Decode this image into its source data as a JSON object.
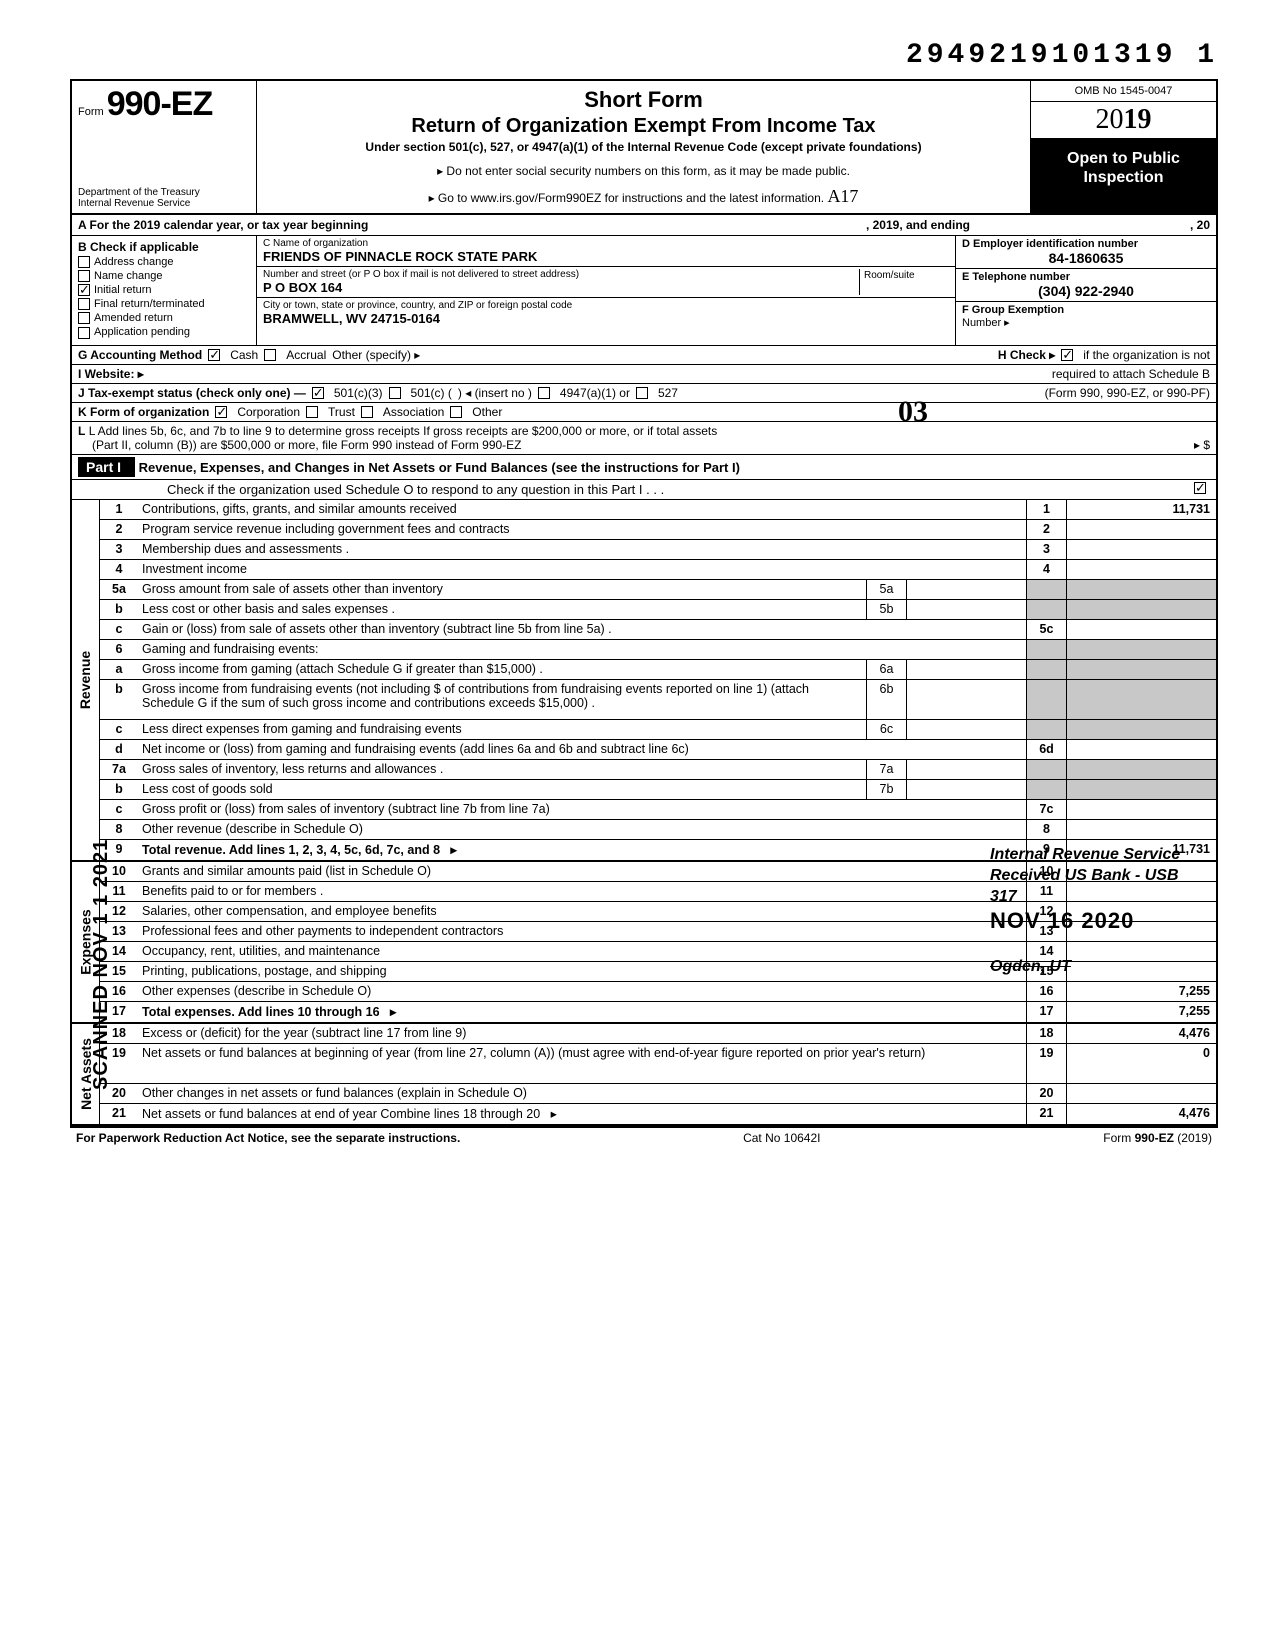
{
  "doc_id": "2949219101319 1",
  "header": {
    "form_prefix": "Form",
    "form_number": "990-EZ",
    "title1": "Short Form",
    "title2": "Return of Organization Exempt From Income Tax",
    "subtitle": "Under section 501(c), 527, or 4947(a)(1) of the Internal Revenue Code (except private foundations)",
    "warn": "▸ Do not enter social security numbers on this form, as it may be made public.",
    "goto": "▸ Go to www.irs.gov/Form990EZ for instructions and the latest information.",
    "dept1": "Department of the Treasury",
    "dept2": "Internal Revenue Service",
    "omb": "OMB No 1545-0047",
    "year_full": "2019",
    "open": "Open to Public Inspection",
    "hand_after_goto": "A17"
  },
  "lineA": {
    "left": "A  For the 2019 calendar year, or tax year beginning",
    "mid": ", 2019, and ending",
    "right": ", 20"
  },
  "B": {
    "label": "B  Check if applicable",
    "items": [
      {
        "label": "Address change",
        "checked": false
      },
      {
        "label": "Name change",
        "checked": false
      },
      {
        "label": "Initial return",
        "checked": true
      },
      {
        "label": "Final return/terminated",
        "checked": false
      },
      {
        "label": "Amended return",
        "checked": false
      },
      {
        "label": "Application pending",
        "checked": false
      }
    ]
  },
  "C": {
    "name_lbl": "C  Name of organization",
    "name": "FRIENDS OF PINNACLE ROCK STATE PARK",
    "addr_lbl": "Number and street (or P O  box if mail is not delivered to street address)",
    "room_lbl": "Room/suite",
    "addr": "P O  BOX 164",
    "city_lbl": "City or town, state or province, country, and ZIP or foreign postal code",
    "city": "BRAMWELL, WV 24715-0164",
    "hand": "03"
  },
  "D": {
    "lbl": "D  Employer identification number",
    "val": "84-1860635"
  },
  "E": {
    "lbl": "E  Telephone number",
    "val": "(304) 922-2940"
  },
  "F": {
    "lbl": "F  Group Exemption",
    "lbl2": "Number ▸"
  },
  "G": {
    "lbl": "G  Accounting Method",
    "cash": "Cash",
    "cash_checked": true,
    "accrual": "Accrual",
    "accrual_checked": false,
    "other": "Other (specify) ▸"
  },
  "H": {
    "txt1": "H  Check ▸",
    "checked": true,
    "txt2": "if the organization is not",
    "txt3": "required to attach Schedule B",
    "txt4": "(Form 990, 990-EZ, or 990-PF)"
  },
  "I": {
    "lbl": "I   Website: ▸"
  },
  "J": {
    "lbl": "J  Tax-exempt status (check only one) —",
    "o1": "501(c)(3)",
    "o1_checked": true,
    "o2": "501(c) (",
    "o2b": ")  ◂ (insert no )",
    "o3": "4947(a)(1) or",
    "o4": "527"
  },
  "K": {
    "lbl": "K  Form of organization",
    "corp": "Corporation",
    "corp_checked": true,
    "trust": "Trust",
    "assoc": "Association",
    "other": "Other"
  },
  "L": {
    "l1": "L  Add lines 5b, 6c, and 7b to line 9 to determine gross receipts  If gross receipts are $200,000 or more, or if total assets",
    "l2": "(Part II, column (B)) are $500,000 or more, file Form 990 instead of Form 990-EZ",
    "arrow": "▸   $"
  },
  "part1": {
    "tab": "Part I",
    "title": "Revenue, Expenses, and Changes in Net Assets or Fund Balances (see the instructions for Part I)",
    "checkO": "Check if the organization used Schedule O to respond to any question in this Part I .  .  .",
    "checkO_checked": true
  },
  "sections": [
    {
      "side": "Revenue",
      "rows": [
        {
          "n": "1",
          "t": "Contributions, gifts, grants, and similar amounts received",
          "r": "1",
          "a": "11,731"
        },
        {
          "n": "2",
          "t": "Program service revenue including government fees and contracts",
          "r": "2",
          "a": ""
        },
        {
          "n": "3",
          "t": "Membership dues and assessments .",
          "r": "3",
          "a": ""
        },
        {
          "n": "4",
          "t": "Investment income",
          "r": "4",
          "a": ""
        },
        {
          "n": "5a",
          "t": "Gross amount from sale of assets other than inventory",
          "b": "5a",
          "grey": true
        },
        {
          "n": "b",
          "t": "Less  cost or other basis and sales expenses .",
          "b": "5b",
          "grey": true
        },
        {
          "n": "c",
          "t": "Gain or (loss) from sale of assets other than inventory (subtract line 5b from line 5a)  .",
          "r": "5c",
          "a": ""
        },
        {
          "n": "6",
          "t": "Gaming and fundraising events:",
          "noboxes": true
        },
        {
          "n": "a",
          "t": "Gross  income  from  gaming  (attach  Schedule  G  if  greater  than $15,000) .",
          "b": "6a",
          "grey": true
        },
        {
          "n": "b",
          "t": "Gross income from fundraising events (not including  $                       of contributions from fundraising events reported on line 1) (attach Schedule G if the sum of such gross income and contributions exceeds $15,000) .",
          "b": "6b",
          "grey": true,
          "tall": true
        },
        {
          "n": "c",
          "t": "Less  direct expenses from gaming and fundraising events",
          "b": "6c",
          "grey": true
        },
        {
          "n": "d",
          "t": "Net income or (loss) from gaming and fundraising events (add lines 6a and 6b and subtract line 6c)",
          "r": "6d",
          "a": ""
        },
        {
          "n": "7a",
          "t": "Gross sales of inventory, less returns and allowances .",
          "b": "7a",
          "grey": true
        },
        {
          "n": "b",
          "t": "Less  cost of goods sold",
          "b": "7b",
          "grey": true
        },
        {
          "n": "c",
          "t": "Gross profit or (loss) from sales of inventory (subtract line 7b from line 7a)",
          "r": "7c",
          "a": ""
        },
        {
          "n": "8",
          "t": "Other revenue (describe in Schedule O)",
          "r": "8",
          "a": ""
        },
        {
          "n": "9",
          "t": "Total revenue. Add lines 1, 2, 3, 4, 5c, 6d, 7c, and 8",
          "r": "9",
          "a": "11,731",
          "tot": true,
          "arrow": true
        }
      ]
    },
    {
      "side": "Expenses",
      "rows": [
        {
          "n": "10",
          "t": "Grants and similar amounts paid (list in Schedule O)",
          "r": "10",
          "a": ""
        },
        {
          "n": "11",
          "t": "Benefits paid to or for members   .",
          "r": "11",
          "a": ""
        },
        {
          "n": "12",
          "t": "Salaries, other compensation, and employee benefits",
          "r": "12",
          "a": ""
        },
        {
          "n": "13",
          "t": "Professional fees and other payments to independent contractors",
          "r": "13",
          "a": ""
        },
        {
          "n": "14",
          "t": "Occupancy, rent, utilities, and maintenance",
          "r": "14",
          "a": ""
        },
        {
          "n": "15",
          "t": "Printing, publications, postage, and shipping",
          "r": "15",
          "a": ""
        },
        {
          "n": "16",
          "t": "Other expenses (describe in Schedule O)",
          "r": "16",
          "a": "7,255"
        },
        {
          "n": "17",
          "t": "Total expenses. Add lines 10 through 16",
          "r": "17",
          "a": "7,255",
          "tot": true,
          "arrow": true
        }
      ]
    },
    {
      "side": "Net Assets",
      "rows": [
        {
          "n": "18",
          "t": "Excess or (deficit) for the year (subtract line 17 from line 9)",
          "r": "18",
          "a": "4,476"
        },
        {
          "n": "19",
          "t": "Net assets or fund balances at beginning of year (from line 27, column (A)) (must agree with end-of-year figure reported on prior year's return)",
          "r": "19",
          "a": "0",
          "tall": true
        },
        {
          "n": "20",
          "t": "Other changes in net assets or fund balances (explain in Schedule O)",
          "r": "20",
          "a": ""
        },
        {
          "n": "21",
          "t": "Net assets or fund balances at end of year  Combine lines 18 through 20",
          "r": "21",
          "a": "4,476",
          "arrow": true
        }
      ]
    }
  ],
  "bottom": {
    "left": "For Paperwork Reduction Act Notice, see the separate instructions.",
    "mid": "Cat  No  10642I",
    "right": "Form 990-EZ (2019)"
  },
  "stamp": {
    "l1": "Internal Revenue Service",
    "l2": "Received US Bank - USB",
    "l3": "317",
    "date": "NOV  16 2020",
    "og": "Ogden, UT"
  },
  "scanned": "SCANNED NOV 1 1 2021"
}
